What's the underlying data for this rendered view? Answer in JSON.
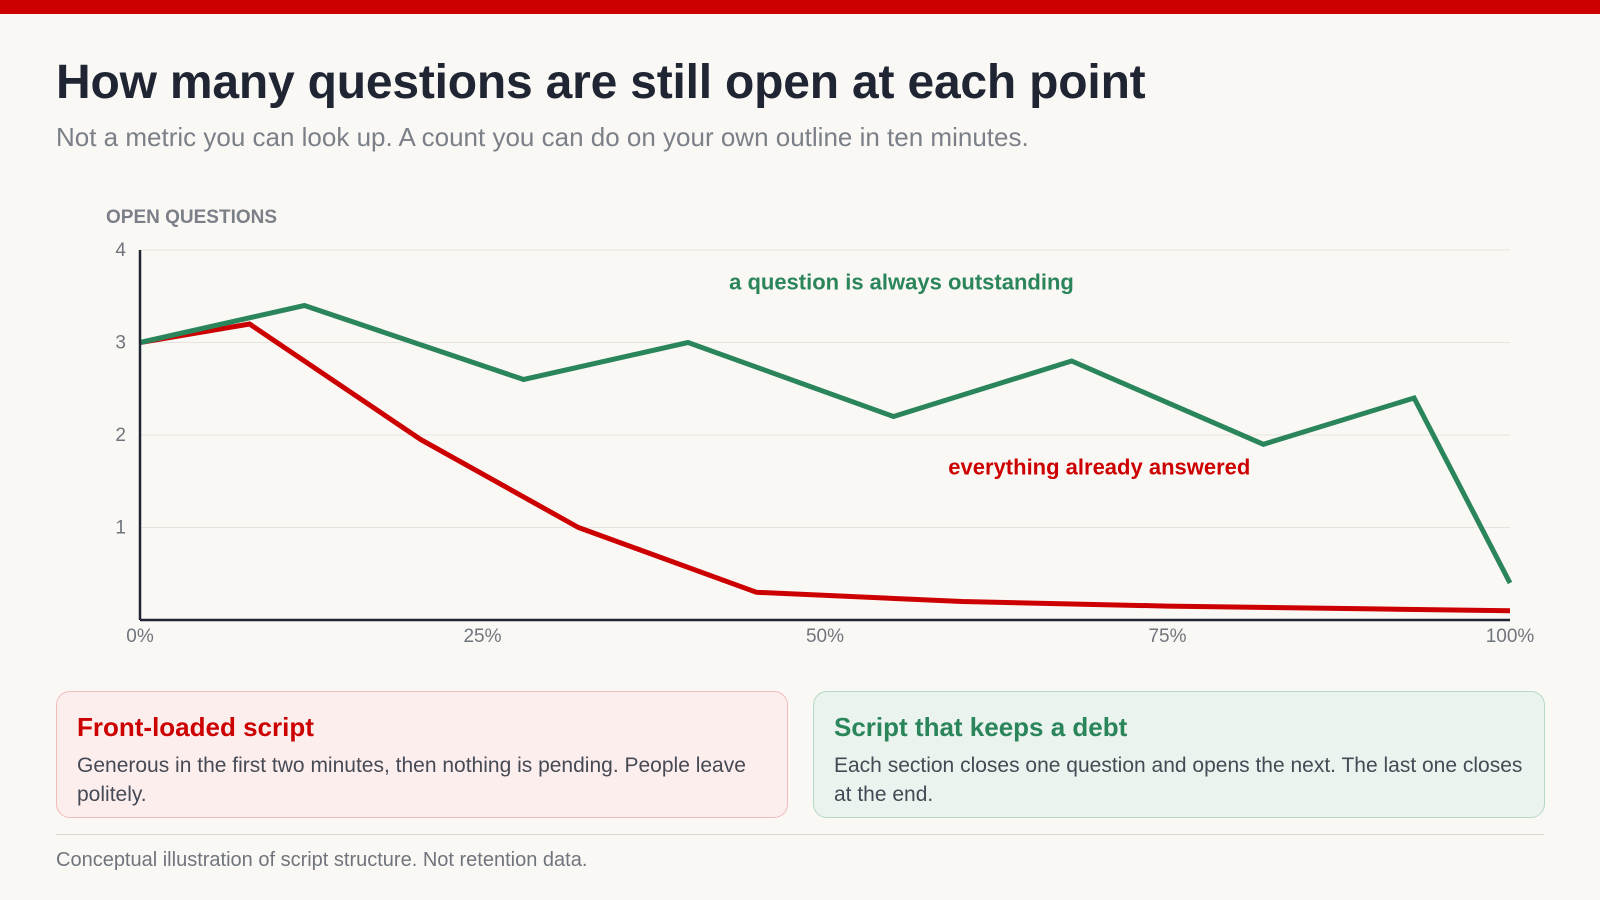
{
  "header": {
    "title": "How many questions are still open at each point",
    "subtitle": "Not a metric you can look up. A count you can do on your own outline in ten minutes."
  },
  "colors": {
    "accent_red": "#cc0000",
    "accent_green": "#2b855b",
    "title": "#1f2532",
    "muted": "#7b7f88"
  },
  "chart_data": {
    "type": "line",
    "ylabel": "OPEN QUESTIONS",
    "xlabel": "",
    "xlim": [
      0,
      100
    ],
    "ylim": [
      0,
      4
    ],
    "x_ticks": [
      "0%",
      "25%",
      "50%",
      "75%",
      "100%"
    ],
    "x_tick_values": [
      0,
      25,
      50,
      75,
      100
    ],
    "y_ticks": [
      "1",
      "2",
      "3",
      "4"
    ],
    "y_tick_values": [
      1,
      2,
      3,
      4
    ],
    "grid": true,
    "series": [
      {
        "color": "#cc0000",
        "x": [
          0,
          8,
          20.5,
          32,
          45,
          60,
          75,
          90,
          100
        ],
        "y": [
          3.0,
          3.2,
          1.95,
          1.0,
          0.3,
          0.2,
          0.15,
          0.12,
          0.1
        ]
      },
      {
        "color": "#2b855b",
        "x": [
          0,
          12,
          28,
          40,
          55,
          68,
          82,
          93,
          100
        ],
        "y": [
          3.0,
          3.4,
          2.6,
          3.0,
          2.2,
          2.8,
          1.9,
          2.4,
          0.4
        ]
      }
    ],
    "annotations": [
      {
        "text": "a question is always outstanding",
        "color": "#2b855b",
        "x": 43,
        "y": 3.65
      },
      {
        "text": "everything already answered",
        "color": "#cc0000",
        "x": 59,
        "y": 1.65
      }
    ]
  },
  "cards": [
    {
      "title": "Front-loaded script",
      "body": "Generous in the first two minutes, then nothing is pending. People leave politely."
    },
    {
      "title": "Script that keeps a debt",
      "body": "Each section closes one question and opens the next. The last one closes at the end."
    }
  ],
  "footnote": "Conceptual illustration of script structure. Not retention data."
}
